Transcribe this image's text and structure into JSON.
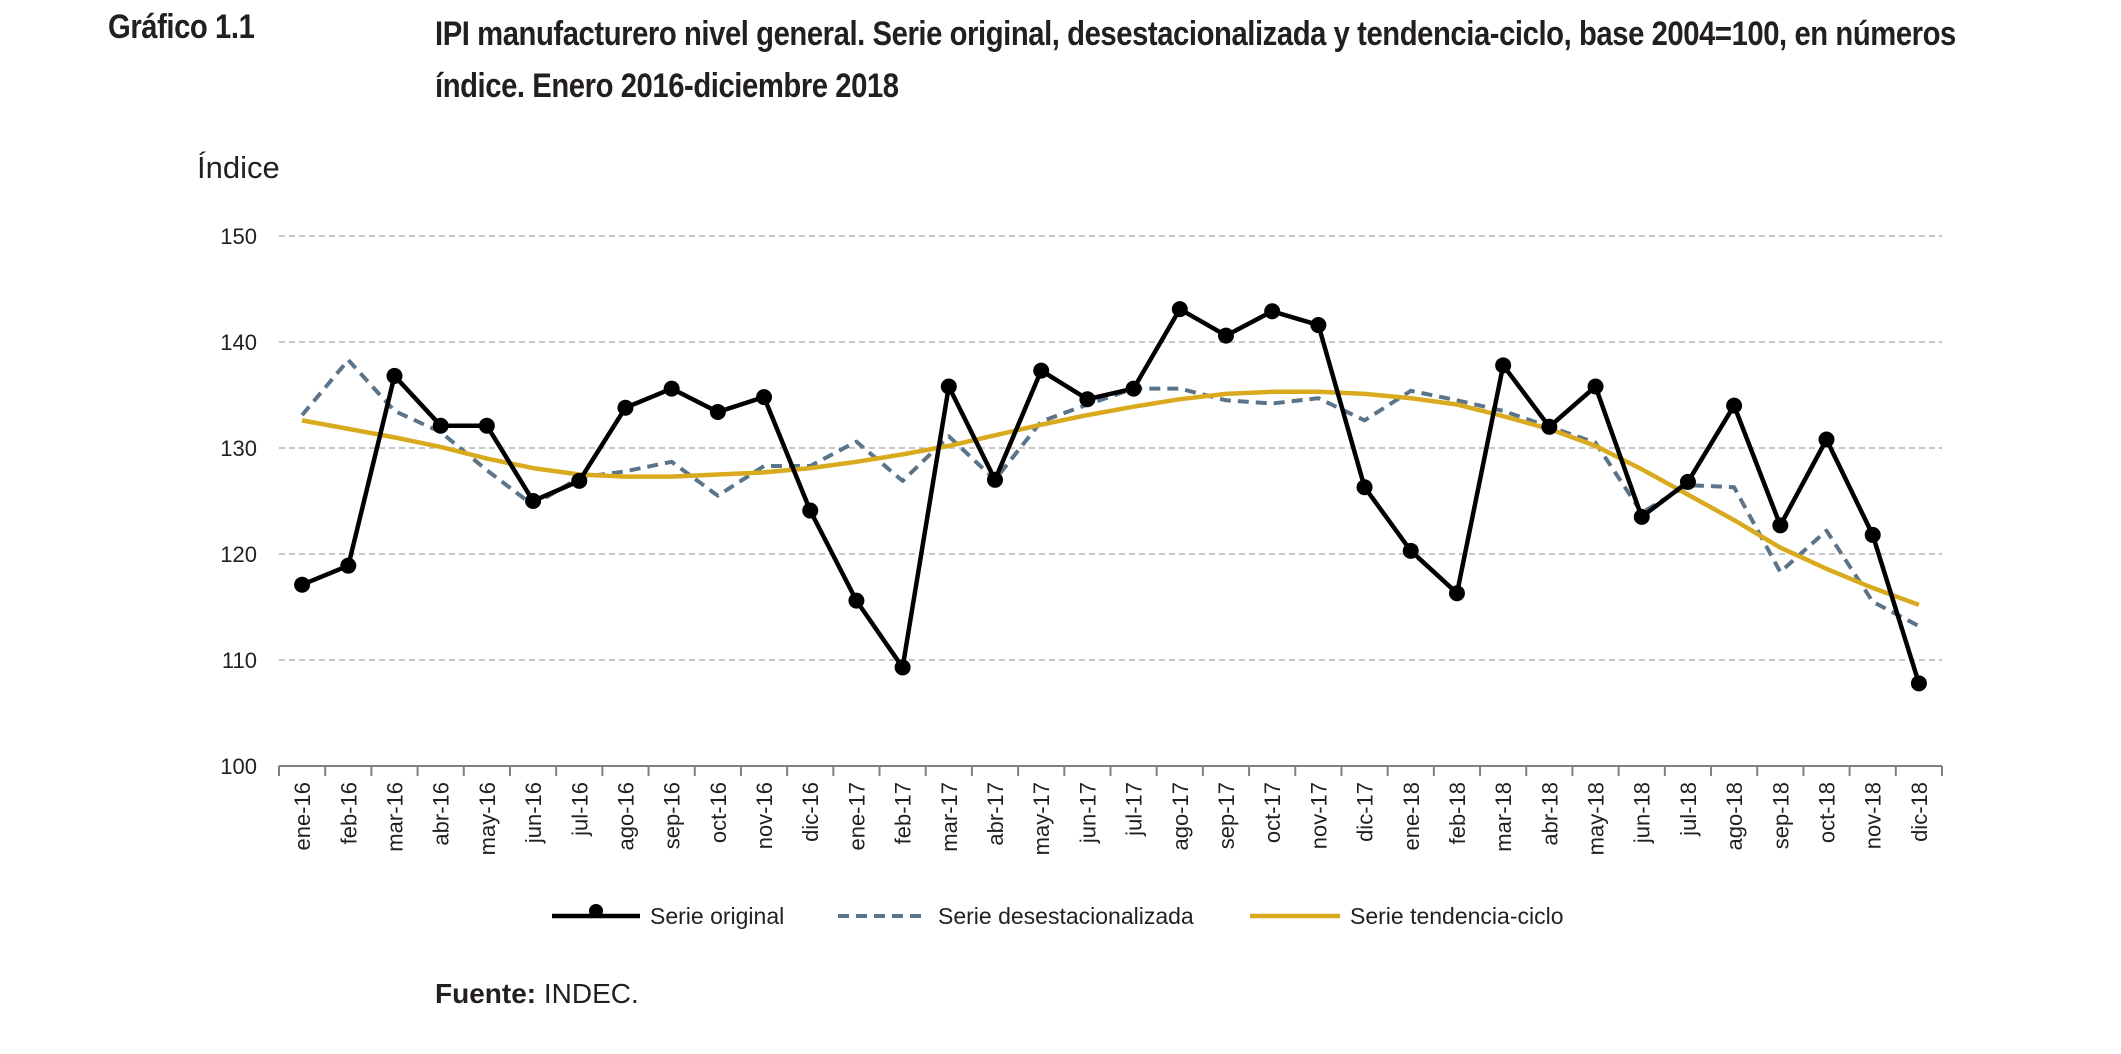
{
  "figure": {
    "label": "Gráfico 1.1",
    "title": "IPI manufacturero nivel general. Serie original, desestacionalizada y tendencia-ciclo, base 2004=100, en números índice. Enero 2016-diciembre 2018",
    "source_label": "Fuente:",
    "source_text": " INDEC."
  },
  "chart_data": {
    "type": "line",
    "ylabel": "Índice",
    "xlabel": "",
    "ylim": [
      100,
      150
    ],
    "yticks": [
      100,
      110,
      120,
      130,
      140,
      150
    ],
    "grid": "horizontal dashed",
    "legend_position": "bottom",
    "categories": [
      "ene-16",
      "feb-16",
      "mar-16",
      "abr-16",
      "may-16",
      "jun-16",
      "jul-16",
      "ago-16",
      "sep-16",
      "oct-16",
      "nov-16",
      "dic-16",
      "ene-17",
      "feb-17",
      "mar-17",
      "abr-17",
      "may-17",
      "jun-17",
      "jul-17",
      "ago-17",
      "sep-17",
      "oct-17",
      "nov-17",
      "dic-17",
      "ene-18",
      "feb-18",
      "mar-18",
      "abr-18",
      "may-18",
      "jun-18",
      "jul-18",
      "ago-18",
      "sep-18",
      "oct-18",
      "nov-18",
      "dic-18"
    ],
    "series": [
      {
        "name": "Serie original",
        "color": "#000000",
        "style": "solid-markers",
        "values": [
          117.1,
          118.9,
          136.8,
          132.1,
          132.1,
          125.0,
          126.9,
          133.8,
          135.6,
          133.4,
          134.8,
          124.1,
          115.6,
          109.3,
          135.8,
          127.0,
          137.3,
          134.6,
          135.6,
          143.1,
          140.6,
          142.9,
          141.6,
          126.3,
          120.3,
          116.3,
          137.8,
          132.0,
          135.8,
          123.5,
          126.8,
          134.0,
          122.7,
          130.8,
          121.8,
          107.8
        ]
      },
      {
        "name": "Serie desestacionalizada",
        "color": "#5b7489",
        "style": "dashed",
        "values": [
          133.1,
          138.3,
          133.5,
          131.5,
          127.9,
          124.6,
          127.2,
          127.8,
          128.7,
          125.5,
          128.3,
          128.3,
          130.6,
          126.9,
          131.1,
          127.0,
          132.5,
          134.1,
          135.6,
          135.6,
          134.5,
          134.2,
          134.7,
          132.6,
          135.4,
          134.5,
          133.5,
          132.0,
          130.5,
          123.9,
          126.5,
          126.3,
          118.3,
          122.2,
          115.5,
          113.2
        ]
      },
      {
        "name": "Serie tendencia-ciclo",
        "color": "#d9a91e",
        "style": "solid",
        "values": [
          132.6,
          131.8,
          131.0,
          130.1,
          129.0,
          128.1,
          127.5,
          127.3,
          127.3,
          127.5,
          127.7,
          128.1,
          128.7,
          129.4,
          130.2,
          131.2,
          132.2,
          133.1,
          133.9,
          134.6,
          135.1,
          135.3,
          135.3,
          135.1,
          134.7,
          134.1,
          133.0,
          131.8,
          130.2,
          128.0,
          125.6,
          123.2,
          120.6,
          118.6,
          116.8,
          115.2
        ]
      }
    ]
  }
}
